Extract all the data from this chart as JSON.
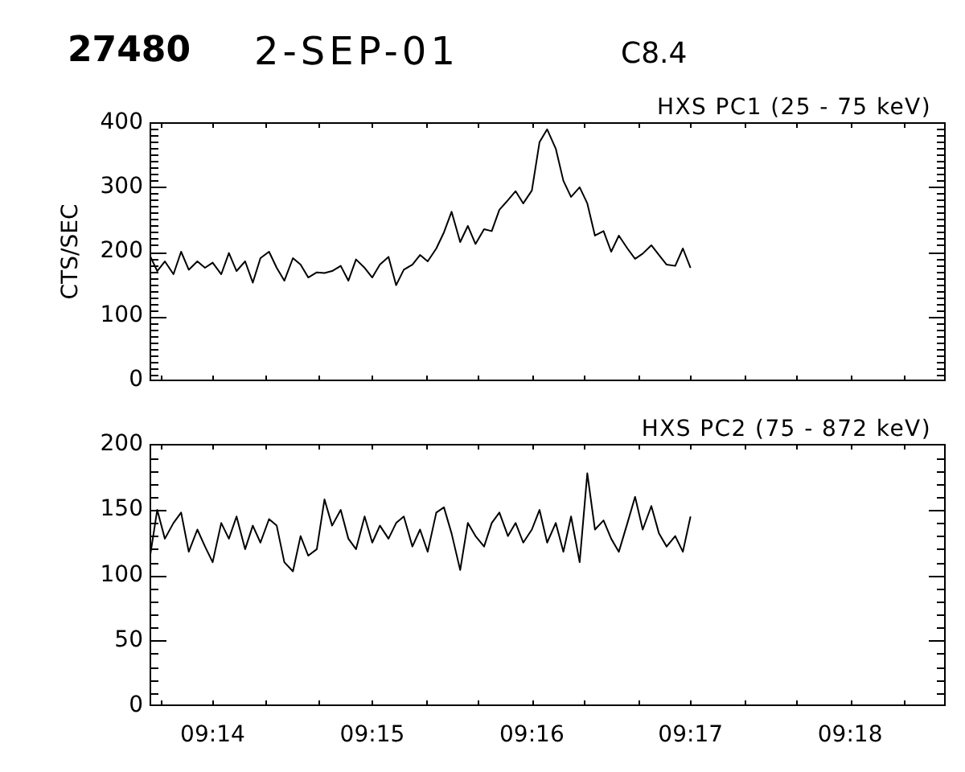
{
  "chart_data": [
    {
      "type": "line",
      "title": "HXS PC1 (25 - 75 keV)",
      "ylabel": "CTS/SEC",
      "annotations": [
        "27480",
        "2-SEP-01",
        "C8.4"
      ],
      "color": "#000000",
      "x": [
        9.2267,
        9.2275,
        9.2283,
        9.2292,
        9.23,
        9.2308,
        9.2317,
        9.2325,
        9.2333,
        9.2342,
        9.235,
        9.2358,
        9.2367,
        9.2375,
        9.2383,
        9.2392,
        9.24,
        9.2408,
        9.2417,
        9.2425,
        9.2433,
        9.2442,
        9.245,
        9.2458,
        9.2467,
        9.2475,
        9.2483,
        9.2492,
        9.25,
        9.2508,
        9.2517,
        9.2525,
        9.2533,
        9.2542,
        9.255,
        9.2558,
        9.2567,
        9.2575,
        9.2583,
        9.2592,
        9.26,
        9.2608,
        9.2617,
        9.2625,
        9.2633,
        9.2642,
        9.265,
        9.2658,
        9.2667,
        9.2675,
        9.2683,
        9.2692,
        9.27,
        9.2708,
        9.2717,
        9.2725,
        9.2733,
        9.2742,
        9.275,
        9.2758,
        9.2767,
        9.2775,
        9.2783,
        9.2792,
        9.28,
        9.2808,
        9.2817,
        9.2825,
        9.2833
      ],
      "values": [
        195,
        170,
        185,
        165,
        200,
        172,
        185,
        175,
        183,
        165,
        198,
        170,
        185,
        152,
        190,
        200,
        175,
        155,
        190,
        180,
        160,
        168,
        167,
        170,
        178,
        155,
        188,
        175,
        160,
        180,
        192,
        148,
        172,
        180,
        195,
        185,
        205,
        230,
        262,
        215,
        240,
        212,
        235,
        232,
        265,
        280,
        294,
        275,
        295,
        370,
        390,
        360,
        310,
        285,
        300,
        275,
        225,
        232,
        200,
        225,
        205,
        189,
        197,
        210,
        195,
        180,
        178,
        205,
        175
      ],
      "xlim": [
        9.2267,
        9.31
      ],
      "xticks": [
        {
          "value": 9.2278,
          "label": null
        },
        {
          "value": 9.2333,
          "label": null
        },
        {
          "value": 9.2389,
          "label": null
        },
        {
          "value": 9.2444,
          "label": null
        },
        {
          "value": 9.25,
          "label": null
        },
        {
          "value": 9.2556,
          "label": null
        },
        {
          "value": 9.2611,
          "label": null
        },
        {
          "value": 9.2667,
          "label": null
        },
        {
          "value": 9.2722,
          "label": null
        },
        {
          "value": 9.2778,
          "label": null
        },
        {
          "value": 9.2833,
          "label": null
        },
        {
          "value": 9.2889,
          "label": null
        },
        {
          "value": 9.2944,
          "label": null
        },
        {
          "value": 9.3,
          "label": null
        },
        {
          "value": 9.3056,
          "label": null
        }
      ],
      "ylim": [
        0,
        400
      ],
      "yticks": [
        0,
        {
          "value": 10,
          "label": null
        },
        {
          "value": 20,
          "label": null
        },
        {
          "value": 30,
          "label": null
        },
        {
          "value": 40,
          "label": null
        },
        {
          "value": 50,
          "label": null
        },
        {
          "value": 60,
          "label": null
        },
        {
          "value": 70,
          "label": null
        },
        {
          "value": 80,
          "label": null
        },
        {
          "value": 90,
          "label": null
        },
        100,
        {
          "value": 110,
          "label": null
        },
        {
          "value": 120,
          "label": null
        },
        {
          "value": 130,
          "label": null
        },
        {
          "value": 140,
          "label": null
        },
        {
          "value": 150,
          "label": null
        },
        {
          "value": 160,
          "label": null
        },
        {
          "value": 170,
          "label": null
        },
        {
          "value": 180,
          "label": null
        },
        {
          "value": 190,
          "label": null
        },
        200,
        {
          "value": 210,
          "label": null
        },
        {
          "value": 220,
          "label": null
        },
        {
          "value": 230,
          "label": null
        },
        {
          "value": 240,
          "label": null
        },
        {
          "value": 250,
          "label": null
        },
        {
          "value": 260,
          "label": null
        },
        {
          "value": 270,
          "label": null
        },
        {
          "value": 280,
          "label": null
        },
        {
          "value": 290,
          "label": null
        },
        300,
        {
          "value": 310,
          "label": null
        },
        {
          "value": 320,
          "label": null
        },
        {
          "value": 330,
          "label": null
        },
        {
          "value": 340,
          "label": null
        },
        {
          "value": 350,
          "label": null
        },
        {
          "value": 360,
          "label": null
        },
        {
          "value": 370,
          "label": null
        },
        {
          "value": 380,
          "label": null
        },
        {
          "value": 390,
          "label": null
        },
        400
      ],
      "tick_labels": "y"
    },
    {
      "type": "line",
      "title": "HXS PC2 (75 - 872 keV)",
      "color": "#000000",
      "x": [
        9.2267,
        9.2275,
        9.2283,
        9.2292,
        9.23,
        9.2308,
        9.2317,
        9.2325,
        9.2333,
        9.2342,
        9.235,
        9.2358,
        9.2367,
        9.2375,
        9.2383,
        9.2392,
        9.24,
        9.2408,
        9.2417,
        9.2425,
        9.2433,
        9.2442,
        9.245,
        9.2458,
        9.2467,
        9.2475,
        9.2483,
        9.2492,
        9.25,
        9.2508,
        9.2517,
        9.2525,
        9.2533,
        9.2542,
        9.255,
        9.2558,
        9.2567,
        9.2575,
        9.2583,
        9.2592,
        9.26,
        9.2608,
        9.2617,
        9.2625,
        9.2633,
        9.2642,
        9.265,
        9.2658,
        9.2667,
        9.2675,
        9.2683,
        9.2692,
        9.27,
        9.2708,
        9.2717,
        9.2725,
        9.2733,
        9.2742,
        9.275,
        9.2758,
        9.2767,
        9.2775,
        9.2783,
        9.2792,
        9.28,
        9.2808,
        9.2817,
        9.2825,
        9.2833
      ],
      "values": [
        112,
        150,
        128,
        140,
        148,
        118,
        135,
        122,
        110,
        140,
        128,
        145,
        120,
        138,
        125,
        143,
        138,
        110,
        103,
        130,
        115,
        120,
        158,
        138,
        150,
        128,
        120,
        145,
        125,
        138,
        128,
        140,
        145,
        122,
        135,
        118,
        148,
        152,
        132,
        104,
        140,
        130,
        122,
        140,
        148,
        130,
        140,
        125,
        135,
        150,
        125,
        140,
        118,
        145,
        110,
        178,
        135,
        142,
        128,
        118,
        140,
        160,
        135,
        153,
        132,
        122,
        130,
        118,
        145
      ],
      "xlim": [
        9.2267,
        9.31
      ],
      "xticks": [
        {
          "value": 9.2278,
          "label": null
        },
        {
          "value": 9.2333,
          "label": "09:14"
        },
        {
          "value": 9.2389,
          "label": null
        },
        {
          "value": 9.2444,
          "label": null
        },
        {
          "value": 9.25,
          "label": "09:15"
        },
        {
          "value": 9.2556,
          "label": null
        },
        {
          "value": 9.2611,
          "label": null
        },
        {
          "value": 9.2667,
          "label": "09:16"
        },
        {
          "value": 9.2722,
          "label": null
        },
        {
          "value": 9.2778,
          "label": null
        },
        {
          "value": 9.2833,
          "label": "09:17"
        },
        {
          "value": 9.2889,
          "label": null
        },
        {
          "value": 9.2944,
          "label": null
        },
        {
          "value": 9.3,
          "label": "09:18"
        },
        {
          "value": 9.3056,
          "label": null
        }
      ],
      "ylim": [
        0,
        200
      ],
      "yticks": [
        0,
        {
          "value": 10,
          "label": null
        },
        {
          "value": 20,
          "label": null
        },
        {
          "value": 30,
          "label": null
        },
        {
          "value": 40,
          "label": null
        },
        50,
        {
          "value": 60,
          "label": null
        },
        {
          "value": 70,
          "label": null
        },
        {
          "value": 80,
          "label": null
        },
        {
          "value": 90,
          "label": null
        },
        100,
        {
          "value": 110,
          "label": null
        },
        {
          "value": 120,
          "label": null
        },
        {
          "value": 130,
          "label": null
        },
        {
          "value": 140,
          "label": null
        },
        150,
        {
          "value": 160,
          "label": null
        },
        {
          "value": 170,
          "label": null
        },
        {
          "value": 180,
          "label": null
        },
        {
          "value": 190,
          "label": null
        },
        200
      ]
    }
  ]
}
